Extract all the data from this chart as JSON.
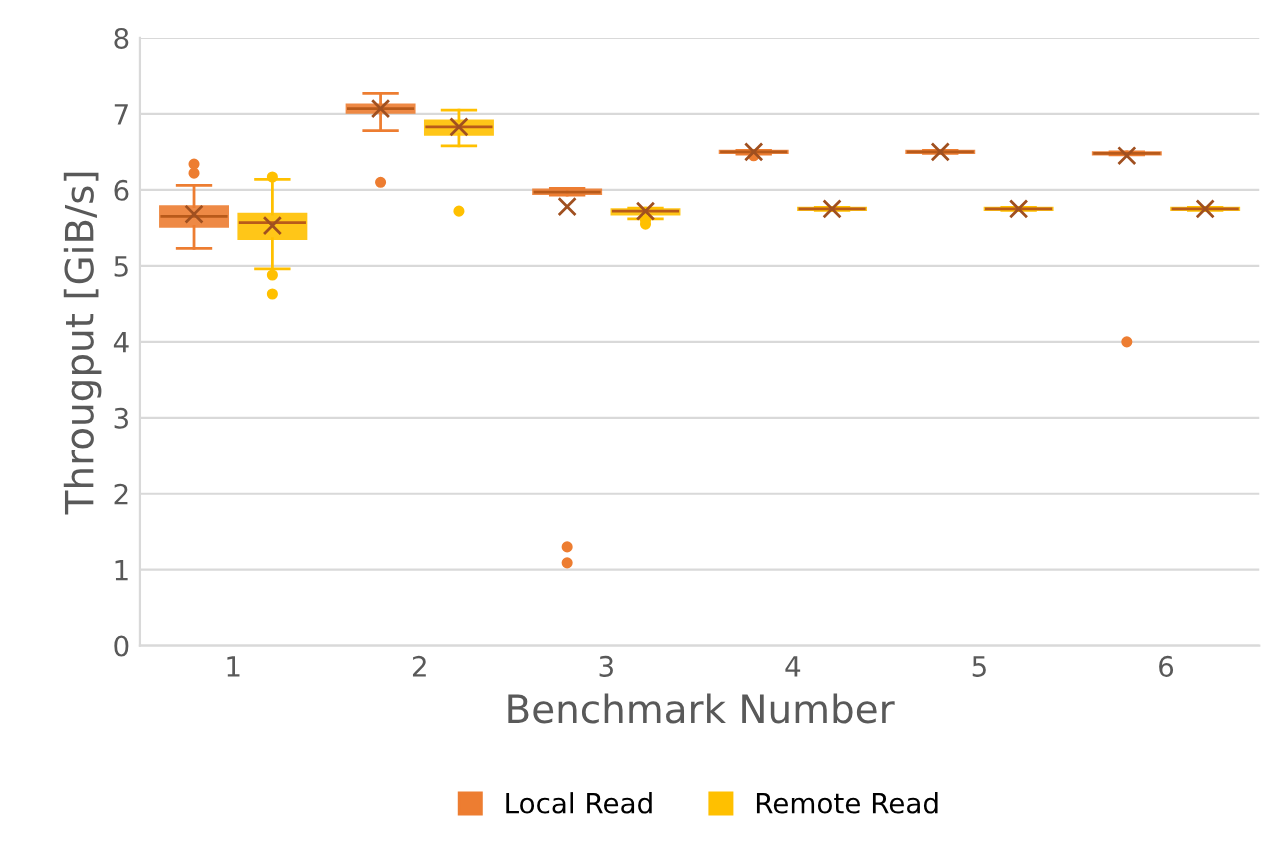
{
  "chart_data": {
    "type": "box",
    "xlabel": "Benchmark Number",
    "ylabel": "Througput [GiB/s]",
    "categories": [
      "1",
      "2",
      "3",
      "4",
      "5",
      "6"
    ],
    "ylim": [
      0,
      8
    ],
    "yticks": [
      0,
      1,
      2,
      3,
      4,
      5,
      6,
      7,
      8
    ],
    "grid": "y",
    "legend": "bottom",
    "series": [
      {
        "name": "Local Read",
        "color": "#ed7d31",
        "boxes": [
          {
            "low": 5.23,
            "q1": 5.52,
            "median": 5.65,
            "q3": 5.78,
            "high": 6.06,
            "mean": 5.68,
            "outliers": [
              6.22,
              6.34
            ]
          },
          {
            "low": 6.78,
            "q1": 7.02,
            "median": 7.07,
            "q3": 7.12,
            "high": 7.27,
            "mean": 7.07,
            "outliers": [
              6.1
            ]
          },
          {
            "low": 5.93,
            "q1": 5.95,
            "median": 5.97,
            "q3": 6.0,
            "high": 6.02,
            "mean": 5.78,
            "outliers": [
              1.09,
              1.3
            ]
          },
          {
            "low": 6.47,
            "q1": 6.49,
            "median": 6.5,
            "q3": 6.51,
            "high": 6.52,
            "mean": 6.5,
            "outliers": [
              6.45
            ]
          },
          {
            "low": 6.48,
            "q1": 6.49,
            "median": 6.5,
            "q3": 6.51,
            "high": 6.52,
            "mean": 6.5
          },
          {
            "low": 6.46,
            "q1": 6.47,
            "median": 6.48,
            "q3": 6.49,
            "high": 6.5,
            "mean": 6.45,
            "outliers": [
              4.0
            ]
          }
        ]
      },
      {
        "name": "Remote Read",
        "color": "#ffc000",
        "boxes": [
          {
            "low": 4.96,
            "q1": 5.36,
            "median": 5.57,
            "q3": 5.68,
            "high": 6.14,
            "mean": 5.53,
            "outliers": [
              4.63,
              4.88,
              6.17
            ]
          },
          {
            "low": 6.58,
            "q1": 6.73,
            "median": 6.83,
            "q3": 6.91,
            "high": 7.05,
            "mean": 6.83,
            "outliers": [
              5.72
            ]
          },
          {
            "low": 5.62,
            "q1": 5.68,
            "median": 5.72,
            "q3": 5.74,
            "high": 5.76,
            "mean": 5.72,
            "outliers": [
              5.55,
              5.6
            ]
          },
          {
            "low": 5.73,
            "q1": 5.74,
            "median": 5.75,
            "q3": 5.76,
            "high": 5.77,
            "mean": 5.75
          },
          {
            "low": 5.73,
            "q1": 5.74,
            "median": 5.75,
            "q3": 5.76,
            "high": 5.77,
            "mean": 5.75
          },
          {
            "low": 5.73,
            "q1": 5.74,
            "median": 5.75,
            "q3": 5.76,
            "high": 5.77,
            "mean": 5.75
          }
        ]
      }
    ]
  }
}
